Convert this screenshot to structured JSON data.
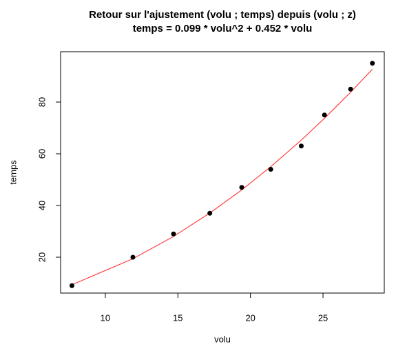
{
  "chart_data": {
    "type": "scatter",
    "title": "Retour sur l'ajustement (volu ; temps) depuis (volu ; z)",
    "subtitle": "temps = 0.099 * volu^2 + 0.452 * volu",
    "x_label": "volu",
    "y_label": "temps",
    "xlim": [
      6.92,
      29.22
    ],
    "ylim": [
      6.13,
      99.47
    ],
    "xticks": [
      10,
      15,
      20,
      25
    ],
    "yticks": [
      20,
      40,
      60,
      80
    ],
    "points": {
      "color": "#000000",
      "x": [
        7.7,
        11.9,
        14.7,
        17.2,
        19.4,
        21.4,
        23.5,
        25.1,
        26.9,
        28.4
      ],
      "y": [
        9,
        20,
        29,
        37,
        47,
        54,
        63,
        75,
        85,
        95
      ]
    },
    "fit": {
      "color": "#ff4040",
      "x": [
        7.7,
        11.9,
        14.7,
        17.2,
        19.4,
        21.4,
        23.5,
        25.1,
        26.9,
        28.4
      ],
      "y": [
        9.35,
        19.4,
        28.03,
        37.06,
        46.03,
        55.01,
        65.29,
        73.72,
        83.8,
        92.69
      ]
    }
  }
}
